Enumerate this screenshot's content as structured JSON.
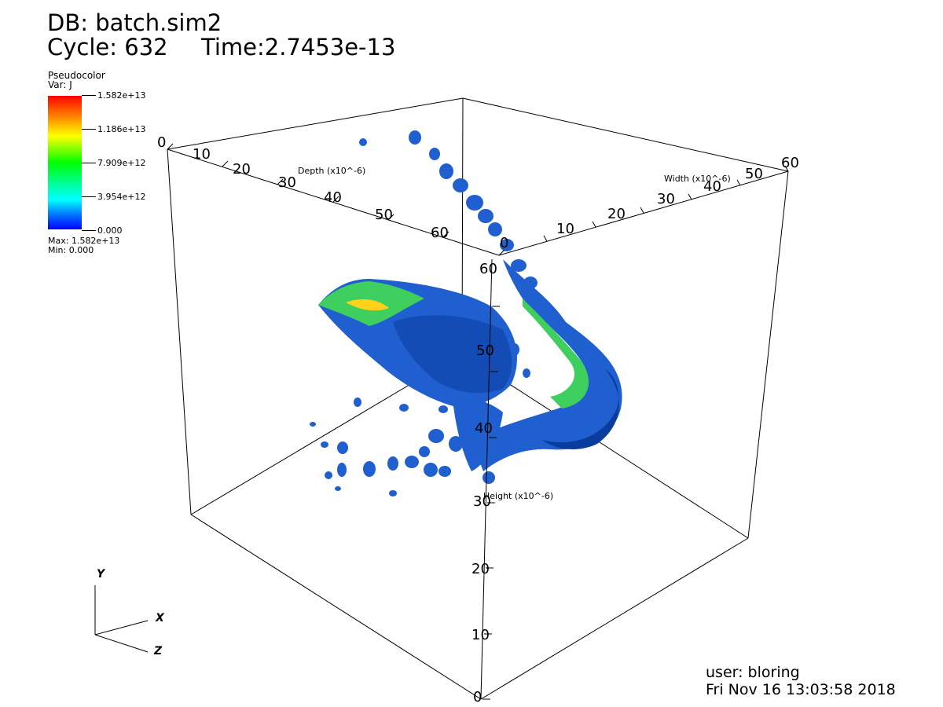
{
  "header": {
    "db_label": "DB: batch.sim2",
    "cycle_label": "Cycle: 632",
    "time_label": "Time:2.7453e-13"
  },
  "legend": {
    "plot_type": "Pseudocolor",
    "var_label": "Var: J",
    "ticks": [
      "1.582e+13",
      "1.186e+13",
      "7.909e+12",
      "3.954e+12",
      "0.000"
    ],
    "max_label": "Max:  1.582e+13",
    "min_label": "Min:  0.000",
    "colors": [
      "#ff0000",
      "#ffff00",
      "#00ff00",
      "#00ffff",
      "#0000ff"
    ]
  },
  "axes": {
    "depth": {
      "title": "Depth (x10^-6)",
      "ticks": [
        "0",
        "10",
        "20",
        "30",
        "40",
        "50",
        "60"
      ]
    },
    "width": {
      "title": "Width (x10^-6)",
      "ticks": [
        "0",
        "10",
        "20",
        "30",
        "40",
        "50",
        "60"
      ]
    },
    "height": {
      "title": "Height (x10^-6)",
      "ticks": [
        "0",
        "10",
        "20",
        "30",
        "40",
        "50",
        "60"
      ]
    }
  },
  "triad": {
    "y": "Y",
    "x": "X",
    "z": "Z"
  },
  "footer": {
    "user": "user: bloring",
    "date": "Fri Nov 16 13:03:58 2018"
  },
  "render_colors": {
    "surface_blue": "#1f5fcf",
    "surface_dark": "#0a3c9e",
    "surface_green": "#3fcf5f"
  }
}
